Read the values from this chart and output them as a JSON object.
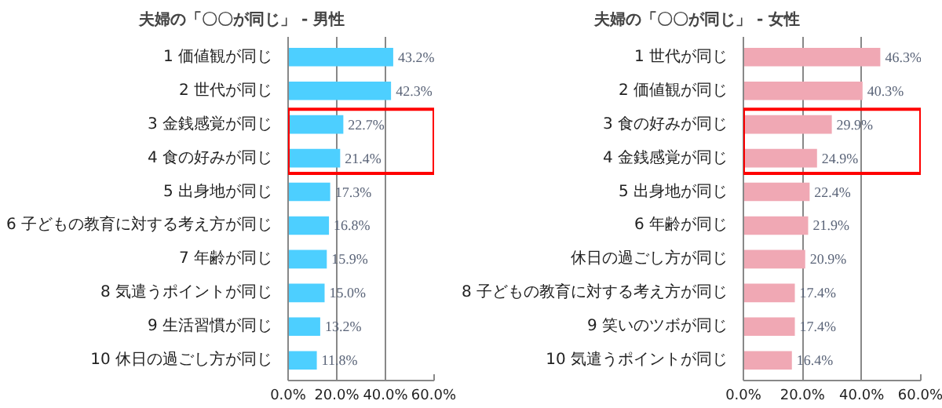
{
  "chart_data": [
    {
      "type": "bar",
      "orientation": "horizontal",
      "title": "夫婦の「〇〇が同じ」 - 男性",
      "categories": [
        "1 価値観が同じ",
        "2 世代が同じ",
        "3 金銭感覚が同じ",
        "4 食の好みが同じ",
        "5 出身地が同じ",
        "6 子どもの教育に対する考え方が同じ",
        "7 年齢が同じ",
        "8 気遣うポイントが同じ",
        "9 生活習慣が同じ",
        "10 休日の過ごし方が同じ"
      ],
      "values": [
        43.2,
        42.3,
        22.7,
        21.4,
        17.3,
        16.8,
        15.9,
        15.0,
        13.2,
        11.8
      ],
      "value_labels": [
        "43.2%",
        "42.3%",
        "22.7%",
        "21.4%",
        "17.3%",
        "16.8%",
        "15.9%",
        "15.0%",
        "13.2%",
        "11.8%"
      ],
      "color": "#4dcfff",
      "xlim": [
        0,
        60
      ],
      "xticks": [
        {
          "value": 0,
          "label": "0.0%"
        },
        {
          "value": 20,
          "label": "20.0%"
        },
        {
          "value": 40,
          "label": "40.0%"
        },
        {
          "value": 60,
          "label": "60.0%"
        }
      ],
      "grid": "x"
    },
    {
      "type": "bar",
      "orientation": "horizontal",
      "title": "夫婦の「〇〇が同じ」 - 女性",
      "categories": [
        "1 世代が同じ",
        "2 価値観が同じ",
        "3 食の好みが同じ",
        "4 金銭感覚が同じ",
        "5 出身地が同じ",
        "6 年齢が同じ",
        "休日の過ごし方が同じ",
        "8 子どもの教育に対する考え方が同じ",
        "9 笑いのツボが同じ",
        "10 気遣うポイントが同じ"
      ],
      "values": [
        46.3,
        40.3,
        29.9,
        24.9,
        22.4,
        21.9,
        20.9,
        17.4,
        17.4,
        16.4
      ],
      "value_labels": [
        "46.3%",
        "40.3%",
        "29.9%",
        "24.9%",
        "22.4%",
        "21.9%",
        "20.9%",
        "17.4%",
        "17.4%",
        "16.4%"
      ],
      "color": "#f0a8b4",
      "xlim": [
        0,
        60
      ],
      "xticks": [
        {
          "value": 0,
          "label": "0.0%"
        },
        {
          "value": 20,
          "label": "20.0%"
        },
        {
          "value": 40,
          "label": "40.0%"
        },
        {
          "value": 60,
          "label": "60.0%"
        }
      ],
      "grid": "x"
    }
  ]
}
